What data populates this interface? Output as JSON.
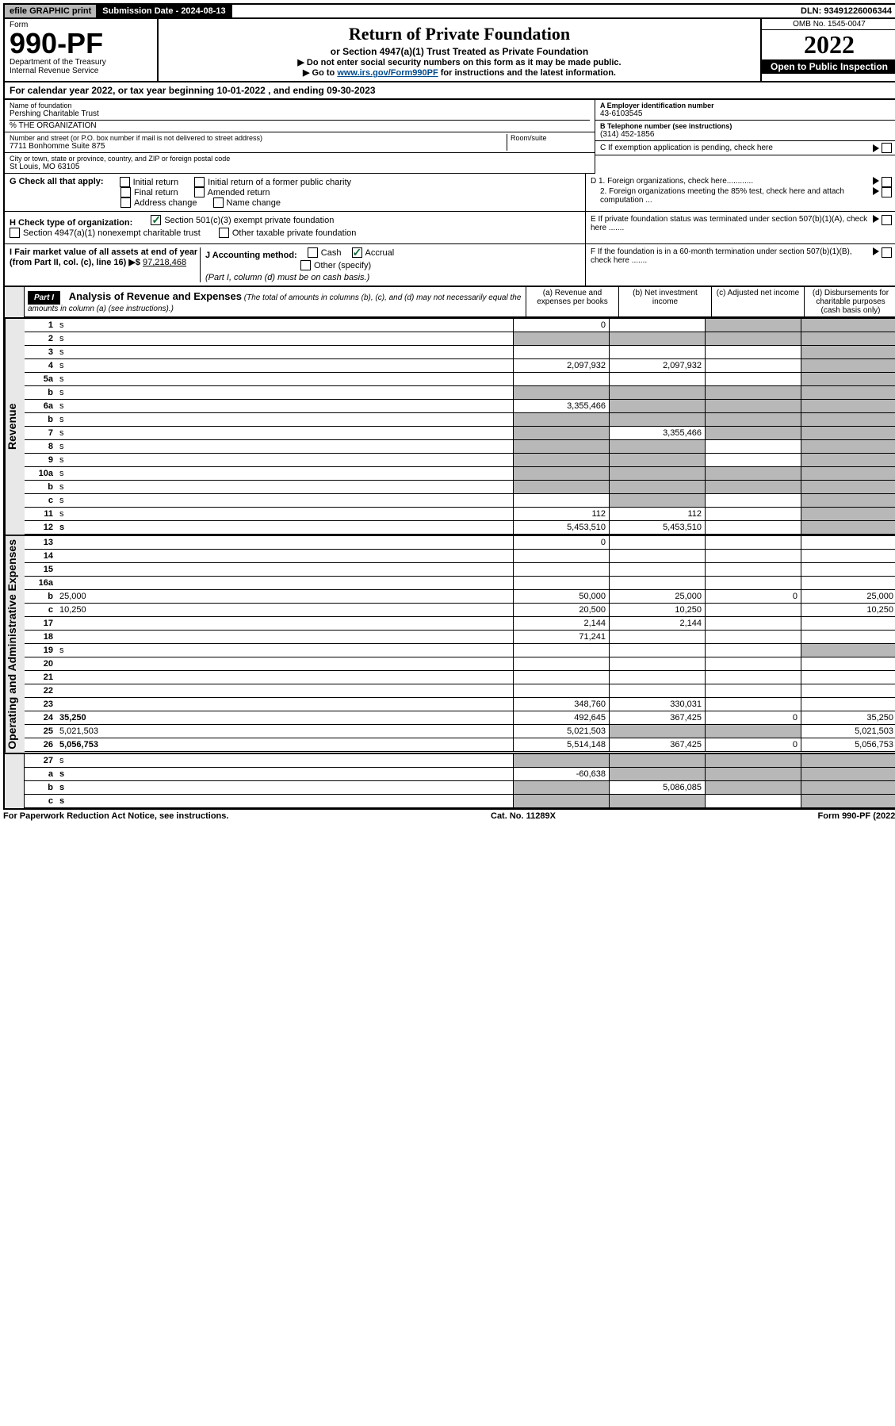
{
  "topbar": {
    "efile": "efile GRAPHIC print",
    "submission": "Submission Date - 2024-08-13",
    "dln": "DLN: 93491226006344"
  },
  "header": {
    "form_label": "Form",
    "form_number": "990-PF",
    "dept1": "Department of the Treasury",
    "dept2": "Internal Revenue Service",
    "title": "Return of Private Foundation",
    "subtitle": "or Section 4947(a)(1) Trust Treated as Private Foundation",
    "inst1": "▶ Do not enter social security numbers on this form as it may be made public.",
    "inst2_pre": "▶ Go to ",
    "inst2_link": "www.irs.gov/Form990PF",
    "inst2_post": " for instructions and the latest information.",
    "omb": "OMB No. 1545-0047",
    "year": "2022",
    "open": "Open to Public Inspection"
  },
  "calyear": "For calendar year 2022, or tax year beginning 10-01-2022             , and ending 09-30-2023",
  "entity": {
    "name_lbl": "Name of foundation",
    "name": "Pershing Charitable Trust",
    "care_of": "% THE ORGANIZATION",
    "addr_lbl": "Number and street (or P.O. box number if mail is not delivered to street address)",
    "addr": "7711 Bonhomme Suite 875",
    "room_lbl": "Room/suite",
    "city_lbl": "City or town, state or province, country, and ZIP or foreign postal code",
    "city": "St Louis, MO  63105",
    "ein_lbl": "A Employer identification number",
    "ein": "43-6103545",
    "phone_lbl": "B Telephone number (see instructions)",
    "phone": "(314) 452-1856",
    "c_lbl": "C If exemption application is pending, check here",
    "d1": "D 1. Foreign organizations, check here............",
    "d2": "2. Foreign organizations meeting the 85% test, check here and attach computation ...",
    "e_lbl": "E If private foundation status was terminated under section 507(b)(1)(A), check here .......",
    "f_lbl": "F If the foundation is in a 60-month termination under section 507(b)(1)(B), check here ......."
  },
  "g": {
    "label": "G Check all that apply:",
    "initial": "Initial return",
    "initial_former": "Initial return of a former public charity",
    "final": "Final return",
    "amended": "Amended return",
    "addr_change": "Address change",
    "name_change": "Name change"
  },
  "h": {
    "label": "H Check type of organization:",
    "501c3": "Section 501(c)(3) exempt private foundation",
    "4947": "Section 4947(a)(1) nonexempt charitable trust",
    "other_taxable": "Other taxable private foundation"
  },
  "i": {
    "label": "I Fair market value of all assets at end of year (from Part II, col. (c), line 16) ▶$",
    "value": "97,218,468"
  },
  "j": {
    "label": "J Accounting method:",
    "cash": "Cash",
    "accrual": "Accrual",
    "other": "Other (specify)",
    "note": "(Part I, column (d) must be on cash basis.)"
  },
  "part1": {
    "label": "Part I",
    "title": "Analysis of Revenue and Expenses",
    "note": "(The total of amounts in columns (b), (c), and (d) may not necessarily equal the amounts in column (a) (see instructions).)",
    "col_a": "(a) Revenue and expenses per books",
    "col_b": "(b) Net investment income",
    "col_c": "(c) Adjusted net income",
    "col_d": "(d) Disbursements for charitable purposes (cash basis only)"
  },
  "side_labels": {
    "revenue": "Revenue",
    "expenses": "Operating and Administrative Expenses"
  },
  "rows": [
    {
      "n": "1",
      "d": "s",
      "a": "0",
      "b": "",
      "c": "s"
    },
    {
      "n": "2",
      "d": "s",
      "a": "s",
      "b": "s",
      "c": "s",
      "bold_not": true
    },
    {
      "n": "3",
      "d": "s",
      "a": "",
      "b": "",
      "c": ""
    },
    {
      "n": "4",
      "d": "s",
      "a": "2,097,932",
      "b": "2,097,932",
      "c": ""
    },
    {
      "n": "5a",
      "d": "s",
      "a": "",
      "b": "",
      "c": ""
    },
    {
      "n": "b",
      "d": "s",
      "a": "s",
      "b": "s",
      "c": "s"
    },
    {
      "n": "6a",
      "d": "s",
      "a": "3,355,466",
      "b": "s",
      "c": "s"
    },
    {
      "n": "b",
      "d": "s",
      "a": "s",
      "b": "s",
      "c": "s"
    },
    {
      "n": "7",
      "d": "s",
      "a": "s",
      "b": "3,355,466",
      "c": "s"
    },
    {
      "n": "8",
      "d": "s",
      "a": "s",
      "b": "s",
      "c": ""
    },
    {
      "n": "9",
      "d": "s",
      "a": "s",
      "b": "s",
      "c": ""
    },
    {
      "n": "10a",
      "d": "s",
      "a": "s",
      "b": "s",
      "c": "s"
    },
    {
      "n": "b",
      "d": "s",
      "a": "s",
      "b": "s",
      "c": "s"
    },
    {
      "n": "c",
      "d": "s",
      "a": "",
      "b": "s",
      "c": ""
    },
    {
      "n": "11",
      "d": "s",
      "a": "112",
      "b": "112",
      "c": ""
    },
    {
      "n": "12",
      "d": "s",
      "a": "5,453,510",
      "b": "5,453,510",
      "c": "",
      "bold": true
    }
  ],
  "exp_rows": [
    {
      "n": "13",
      "d": "",
      "a": "0",
      "b": "",
      "c": ""
    },
    {
      "n": "14",
      "d": "",
      "a": "",
      "b": "",
      "c": ""
    },
    {
      "n": "15",
      "d": "",
      "a": "",
      "b": "",
      "c": ""
    },
    {
      "n": "16a",
      "d": "",
      "a": "",
      "b": "",
      "c": ""
    },
    {
      "n": "b",
      "d": "25,000",
      "a": "50,000",
      "b": "25,000",
      "c": "0"
    },
    {
      "n": "c",
      "d": "10,250",
      "a": "20,500",
      "b": "10,250",
      "c": ""
    },
    {
      "n": "17",
      "d": "",
      "a": "2,144",
      "b": "2,144",
      "c": ""
    },
    {
      "n": "18",
      "d": "",
      "a": "71,241",
      "b": "",
      "c": ""
    },
    {
      "n": "19",
      "d": "s",
      "a": "",
      "b": "",
      "c": ""
    },
    {
      "n": "20",
      "d": "",
      "a": "",
      "b": "",
      "c": ""
    },
    {
      "n": "21",
      "d": "",
      "a": "",
      "b": "",
      "c": ""
    },
    {
      "n": "22",
      "d": "",
      "a": "",
      "b": "",
      "c": ""
    },
    {
      "n": "23",
      "d": "",
      "a": "348,760",
      "b": "330,031",
      "c": ""
    },
    {
      "n": "24",
      "d": "35,250",
      "a": "492,645",
      "b": "367,425",
      "c": "0",
      "bold": true
    },
    {
      "n": "25",
      "d": "5,021,503",
      "a": "5,021,503",
      "b": "s",
      "c": "s"
    },
    {
      "n": "26",
      "d": "5,056,753",
      "a": "5,514,148",
      "b": "367,425",
      "c": "0",
      "bold": true
    }
  ],
  "bottom_rows": [
    {
      "n": "27",
      "d": "s",
      "a": "s",
      "b": "s",
      "c": "s"
    },
    {
      "n": "a",
      "d": "s",
      "a": "-60,638",
      "b": "s",
      "c": "s",
      "bold": true
    },
    {
      "n": "b",
      "d": "s",
      "a": "s",
      "b": "5,086,085",
      "c": "s",
      "bold": true
    },
    {
      "n": "c",
      "d": "s",
      "a": "s",
      "b": "s",
      "c": "",
      "bold": true
    }
  ],
  "footer": {
    "left": "For Paperwork Reduction Act Notice, see instructions.",
    "center": "Cat. No. 11289X",
    "right": "Form 990-PF (2022)"
  }
}
